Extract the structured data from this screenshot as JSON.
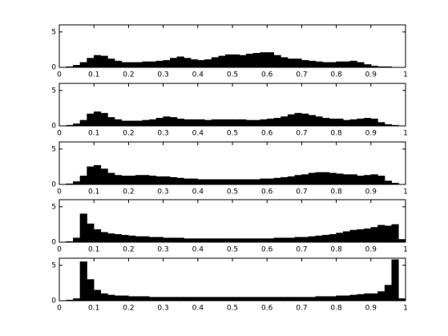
{
  "chart_data": [
    {
      "type": "histogram",
      "color": "#000000",
      "xlim": [
        0,
        1
      ],
      "ylim": [
        0,
        6
      ],
      "xticks": [
        0,
        0.1,
        0.2,
        0.3,
        0.4,
        0.5,
        0.6,
        0.7,
        0.8,
        0.9,
        1
      ],
      "yticks": [
        0,
        5
      ],
      "bins": [
        0,
        0.02,
        0.04,
        0.06,
        0.08,
        0.1,
        0.12,
        0.14,
        0.16,
        0.18,
        0.2,
        0.22,
        0.24,
        0.26,
        0.28,
        0.3,
        0.32,
        0.34,
        0.36,
        0.38,
        0.4,
        0.42,
        0.44,
        0.46,
        0.48,
        0.5,
        0.52,
        0.54,
        0.56,
        0.58,
        0.6,
        0.62,
        0.64,
        0.66,
        0.68,
        0.7,
        0.72,
        0.74,
        0.76,
        0.78,
        0.8,
        0.82,
        0.84,
        0.86,
        0.88,
        0.9,
        0.92,
        0.94,
        0.96,
        0.98,
        1
      ],
      "values": [
        0,
        0.1,
        0.3,
        0.7,
        1.3,
        1.7,
        1.6,
        1.2,
        0.9,
        0.7,
        0.7,
        0.7,
        0.8,
        0.8,
        0.9,
        1.0,
        1.3,
        1.5,
        1.3,
        1.1,
        1.0,
        1.1,
        1.4,
        1.6,
        1.8,
        1.8,
        1.7,
        1.9,
        2.0,
        2.1,
        2.1,
        1.7,
        1.4,
        1.2,
        1.2,
        1.0,
        0.9,
        0.8,
        0.7,
        0.7,
        0.8,
        0.8,
        0.9,
        0.7,
        0.4,
        0.2,
        0.1,
        0.1,
        0,
        0
      ]
    },
    {
      "type": "histogram",
      "color": "#000000",
      "xlim": [
        0,
        1
      ],
      "ylim": [
        0,
        6
      ],
      "xticks": [
        0,
        0.1,
        0.2,
        0.3,
        0.4,
        0.5,
        0.6,
        0.7,
        0.8,
        0.9,
        1
      ],
      "yticks": [
        0,
        5
      ],
      "bins": [
        0,
        0.02,
        0.04,
        0.06,
        0.08,
        0.1,
        0.12,
        0.14,
        0.16,
        0.18,
        0.2,
        0.22,
        0.24,
        0.26,
        0.28,
        0.3,
        0.32,
        0.34,
        0.36,
        0.38,
        0.4,
        0.42,
        0.44,
        0.46,
        0.48,
        0.5,
        0.52,
        0.54,
        0.56,
        0.58,
        0.6,
        0.62,
        0.64,
        0.66,
        0.68,
        0.7,
        0.72,
        0.74,
        0.76,
        0.78,
        0.8,
        0.82,
        0.84,
        0.86,
        0.88,
        0.9,
        0.92,
        0.94,
        0.96,
        0.98,
        1
      ],
      "values": [
        0,
        0.1,
        0.3,
        0.8,
        1.7,
        2.0,
        1.8,
        1.2,
        0.9,
        0.7,
        0.7,
        0.7,
        0.8,
        0.9,
        1.1,
        1.3,
        1.2,
        1.0,
        0.9,
        0.9,
        0.9,
        0.8,
        0.9,
        0.9,
        0.9,
        0.9,
        0.9,
        0.8,
        0.8,
        0.9,
        1.0,
        1.1,
        1.3,
        1.6,
        1.8,
        1.7,
        1.5,
        1.3,
        1.1,
        1.0,
        1.0,
        0.8,
        0.9,
        1.0,
        1.1,
        1.0,
        0.5,
        0.2,
        0.1,
        0
      ]
    },
    {
      "type": "histogram",
      "color": "#000000",
      "xlim": [
        0,
        1
      ],
      "ylim": [
        0,
        6
      ],
      "xticks": [
        0,
        0.1,
        0.2,
        0.3,
        0.4,
        0.5,
        0.6,
        0.7,
        0.8,
        0.9,
        1
      ],
      "yticks": [
        0,
        5
      ],
      "bins": [
        0,
        0.02,
        0.04,
        0.06,
        0.08,
        0.1,
        0.12,
        0.14,
        0.16,
        0.18,
        0.2,
        0.22,
        0.24,
        0.26,
        0.28,
        0.3,
        0.32,
        0.34,
        0.36,
        0.38,
        0.4,
        0.42,
        0.44,
        0.46,
        0.48,
        0.5,
        0.52,
        0.54,
        0.56,
        0.58,
        0.6,
        0.62,
        0.64,
        0.66,
        0.68,
        0.7,
        0.72,
        0.74,
        0.76,
        0.78,
        0.8,
        0.82,
        0.84,
        0.86,
        0.88,
        0.9,
        0.92,
        0.94,
        0.96,
        0.98,
        1
      ],
      "values": [
        0,
        0.1,
        0.4,
        1.2,
        2.5,
        2.7,
        2.2,
        1.6,
        1.3,
        1.2,
        1.2,
        1.3,
        1.3,
        1.2,
        1.1,
        1.1,
        1.0,
        0.9,
        0.8,
        0.8,
        0.7,
        0.7,
        0.7,
        0.7,
        0.7,
        0.7,
        0.7,
        0.7,
        0.7,
        0.8,
        0.8,
        0.9,
        1.0,
        1.1,
        1.3,
        1.4,
        1.6,
        1.7,
        1.7,
        1.6,
        1.5,
        1.4,
        1.4,
        1.2,
        1.3,
        1.4,
        1.2,
        0.5,
        0.2,
        0
      ]
    },
    {
      "type": "histogram",
      "color": "#000000",
      "xlim": [
        0,
        1
      ],
      "ylim": [
        0,
        6
      ],
      "xticks": [
        0,
        0.1,
        0.2,
        0.3,
        0.4,
        0.5,
        0.6,
        0.7,
        0.8,
        0.9,
        1
      ],
      "yticks": [
        0,
        5
      ],
      "bins": [
        0,
        0.02,
        0.04,
        0.06,
        0.08,
        0.1,
        0.12,
        0.14,
        0.16,
        0.18,
        0.2,
        0.22,
        0.24,
        0.26,
        0.28,
        0.3,
        0.32,
        0.34,
        0.36,
        0.38,
        0.4,
        0.42,
        0.44,
        0.46,
        0.48,
        0.5,
        0.52,
        0.54,
        0.56,
        0.58,
        0.6,
        0.62,
        0.64,
        0.66,
        0.68,
        0.7,
        0.72,
        0.74,
        0.76,
        0.78,
        0.8,
        0.82,
        0.84,
        0.86,
        0.88,
        0.9,
        0.92,
        0.94,
        0.96,
        0.98,
        1
      ],
      "values": [
        0,
        0.1,
        0.6,
        4.0,
        2.6,
        1.8,
        1.4,
        1.2,
        1.1,
        1.0,
        0.9,
        0.8,
        0.8,
        0.7,
        0.7,
        0.6,
        0.6,
        0.6,
        0.5,
        0.5,
        0.5,
        0.5,
        0.5,
        0.5,
        0.5,
        0.5,
        0.5,
        0.5,
        0.5,
        0.5,
        0.5,
        0.6,
        0.6,
        0.6,
        0.7,
        0.7,
        0.8,
        0.9,
        1.0,
        1.1,
        1.3,
        1.5,
        1.7,
        1.8,
        1.9,
        2.1,
        2.4,
        2.3,
        2.5,
        0.4
      ]
    },
    {
      "type": "histogram",
      "color": "#000000",
      "xlim": [
        0,
        1
      ],
      "ylim": [
        0,
        6
      ],
      "xticks": [
        0,
        0.1,
        0.2,
        0.3,
        0.4,
        0.5,
        0.6,
        0.7,
        0.8,
        0.9,
        1
      ],
      "yticks": [
        0,
        5
      ],
      "bins": [
        0,
        0.02,
        0.04,
        0.06,
        0.08,
        0.1,
        0.12,
        0.14,
        0.16,
        0.18,
        0.2,
        0.22,
        0.24,
        0.26,
        0.28,
        0.3,
        0.32,
        0.34,
        0.36,
        0.38,
        0.4,
        0.42,
        0.44,
        0.46,
        0.48,
        0.5,
        0.52,
        0.54,
        0.56,
        0.58,
        0.6,
        0.62,
        0.64,
        0.66,
        0.68,
        0.7,
        0.72,
        0.74,
        0.76,
        0.78,
        0.8,
        0.82,
        0.84,
        0.86,
        0.88,
        0.9,
        0.92,
        0.94,
        0.96,
        0.98,
        1
      ],
      "values": [
        0,
        0.1,
        0.3,
        5.5,
        3.0,
        1.5,
        1.0,
        0.8,
        0.7,
        0.7,
        0.6,
        0.6,
        0.6,
        0.5,
        0.5,
        0.5,
        0.5,
        0.5,
        0.5,
        0.5,
        0.5,
        0.5,
        0.5,
        0.5,
        0.5,
        0.5,
        0.5,
        0.5,
        0.5,
        0.5,
        0.5,
        0.5,
        0.5,
        0.5,
        0.5,
        0.5,
        0.5,
        0.6,
        0.6,
        0.6,
        0.7,
        0.7,
        0.8,
        0.9,
        1.0,
        1.0,
        1.3,
        2.2,
        5.8,
        0.3
      ]
    }
  ]
}
